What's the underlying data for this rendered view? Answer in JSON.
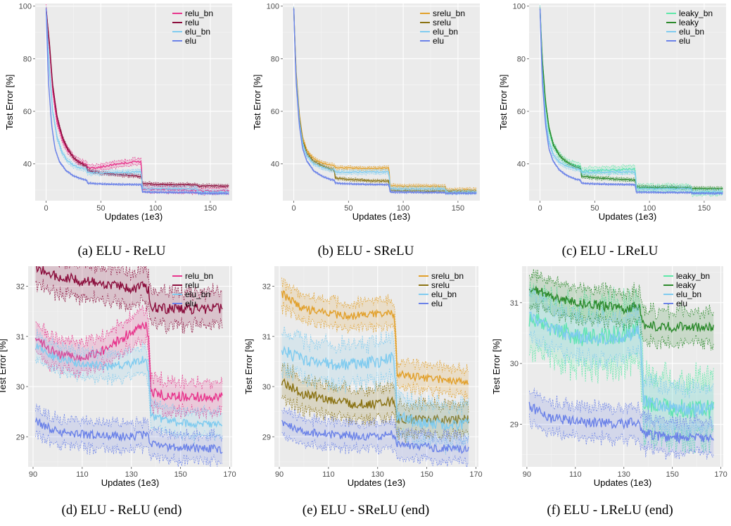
{
  "colors": {
    "panel_bg": "#ebebeb",
    "grid": "#ffffff",
    "relu_bn": "#e8348c",
    "relu": "#8b0d3c",
    "elu_bn": "#7fcbef",
    "elu": "#6b82e8",
    "srelu_bn": "#e2a02a",
    "srelu": "#8a7212",
    "leaky_bn": "#5de8a8",
    "leaky": "#2c8a2c"
  },
  "chart_data": [
    {
      "id": "a",
      "type": "line",
      "caption": "(a)  ELU - ReLU",
      "xlabel": "Updates (1e3)",
      "ylabel": "Test Error [%]",
      "xlim": [
        -10,
        170
      ],
      "ylim": [
        26,
        101
      ],
      "xticks": [
        0,
        50,
        100,
        150
      ],
      "yticks": [
        40,
        60,
        80,
        100
      ],
      "legend_position": "top-right",
      "series": [
        {
          "name": "relu_bn",
          "color_key": "relu_bn",
          "spread": 1.4,
          "x": [
            0,
            3,
            6,
            10,
            15,
            20,
            25,
            30,
            37,
            38,
            45,
            55,
            65,
            75,
            87,
            88,
            100,
            120,
            138,
            139,
            150,
            167
          ],
          "y": [
            99,
            85,
            68,
            56,
            49,
            45,
            42.5,
            41,
            39.5,
            38.5,
            38.5,
            39.2,
            40,
            40.5,
            41,
            30.5,
            30.3,
            30.1,
            30,
            29.8,
            29.8,
            29.8
          ]
        },
        {
          "name": "relu",
          "color_key": "relu",
          "spread": 0.7,
          "x": [
            0,
            3,
            6,
            10,
            15,
            20,
            25,
            30,
            37,
            38,
            50,
            70,
            87,
            88,
            100,
            120,
            138,
            139,
            150,
            167
          ],
          "y": [
            99,
            86,
            70,
            58,
            50,
            45.5,
            42.5,
            40.5,
            39,
            37.5,
            36.5,
            35.8,
            35.2,
            32.5,
            32.3,
            32.1,
            32,
            31.6,
            31.6,
            31.6
          ]
        },
        {
          "name": "elu_bn",
          "color_key": "elu_bn",
          "spread": 1.0,
          "x": [
            0,
            3,
            6,
            10,
            15,
            20,
            25,
            30,
            37,
            38,
            50,
            70,
            87,
            88,
            100,
            120,
            138,
            139,
            150,
            167
          ],
          "y": [
            99,
            76,
            60,
            50,
            44,
            41,
            39.5,
            38.5,
            38,
            36.6,
            36.6,
            36.8,
            37,
            30.6,
            30.5,
            30.5,
            30.5,
            29.3,
            29.3,
            29.3
          ]
        },
        {
          "name": "elu",
          "color_key": "elu",
          "spread": 0.4,
          "x": [
            0,
            2,
            5,
            8,
            12,
            18,
            25,
            32,
            37,
            38,
            50,
            70,
            87,
            88,
            100,
            120,
            138,
            139,
            150,
            167
          ],
          "y": [
            99,
            72,
            55,
            46,
            41,
            37.5,
            35.5,
            34.3,
            33.8,
            32.7,
            32.4,
            32.2,
            32.1,
            29.3,
            29.2,
            29.1,
            29.1,
            28.8,
            28.8,
            28.8
          ]
        }
      ]
    },
    {
      "id": "b",
      "type": "line",
      "caption": "(b)  ELU - SReLU",
      "xlabel": "Updates (1e3)",
      "ylabel": "Test Error [%]",
      "xlim": [
        -10,
        170
      ],
      "ylim": [
        26,
        101
      ],
      "xticks": [
        0,
        50,
        100,
        150
      ],
      "yticks": [
        40,
        60,
        80,
        100
      ],
      "legend_position": "top-right",
      "series": [
        {
          "name": "srelu_bn",
          "color_key": "srelu_bn",
          "spread": 0.8,
          "x": [
            0,
            2,
            5,
            8,
            12,
            18,
            25,
            32,
            37,
            38,
            50,
            70,
            87,
            88,
            100,
            120,
            138,
            139,
            150,
            167
          ],
          "y": [
            99,
            76,
            59,
            50,
            45,
            42,
            40.5,
            39.8,
            39.3,
            38.6,
            38.4,
            38.3,
            38.4,
            31.7,
            31.5,
            31.4,
            31.4,
            30.2,
            30.1,
            30.1
          ]
        },
        {
          "name": "srelu",
          "color_key": "srelu",
          "spread": 0.6,
          "x": [
            0,
            2,
            5,
            8,
            12,
            18,
            25,
            32,
            37,
            38,
            50,
            70,
            87,
            88,
            100,
            120,
            138,
            139,
            150,
            167
          ],
          "y": [
            99,
            75,
            58,
            49,
            44,
            41,
            39.5,
            38.3,
            37.8,
            34.6,
            34.1,
            33.6,
            33.4,
            29.9,
            29.8,
            29.7,
            29.7,
            29.4,
            29.4,
            29.4
          ]
        },
        {
          "name": "elu_bn",
          "color_key": "elu_bn",
          "spread": 0.9,
          "x": [
            0,
            2,
            5,
            8,
            12,
            18,
            25,
            32,
            37,
            38,
            50,
            70,
            87,
            88,
            100,
            120,
            138,
            139,
            150,
            167
          ],
          "y": [
            99,
            74,
            57,
            48,
            43,
            40.2,
            38.8,
            38,
            37.6,
            36.9,
            36.8,
            36.9,
            37,
            30.6,
            30.5,
            30.5,
            30.5,
            29.3,
            29.3,
            29.3
          ]
        },
        {
          "name": "elu",
          "color_key": "elu",
          "spread": 0.4,
          "x": [
            0,
            2,
            5,
            8,
            12,
            18,
            25,
            32,
            37,
            38,
            50,
            70,
            87,
            88,
            100,
            120,
            138,
            139,
            150,
            167
          ],
          "y": [
            99,
            72,
            55,
            46,
            41,
            37.5,
            35.5,
            34.3,
            33.8,
            32.7,
            32.4,
            32.2,
            32.1,
            29.3,
            29.2,
            29.1,
            29.1,
            28.8,
            28.8,
            28.8
          ]
        }
      ]
    },
    {
      "id": "c",
      "type": "line",
      "caption": "(c)  ELU - LReLU",
      "xlabel": "Updates (1e3)",
      "ylabel": "Test Error [%]",
      "xlim": [
        -10,
        170
      ],
      "ylim": [
        26,
        101
      ],
      "xticks": [
        0,
        50,
        100,
        150
      ],
      "yticks": [
        40,
        60,
        80,
        100
      ],
      "legend_position": "top-right",
      "series": [
        {
          "name": "leaky_bn",
          "color_key": "leaky_bn",
          "spread": 1.5,
          "x": [
            0,
            2,
            5,
            8,
            12,
            18,
            25,
            32,
            37,
            38,
            50,
            70,
            87,
            88,
            100,
            120,
            138,
            139,
            150,
            167
          ],
          "y": [
            99,
            80,
            63,
            53,
            47,
            43,
            40.5,
            39.5,
            38.8,
            37.3,
            37.4,
            37.8,
            38,
            31,
            30.9,
            30.8,
            30.8,
            29.3,
            29.3,
            29.3
          ]
        },
        {
          "name": "leaky",
          "color_key": "leaky",
          "spread": 0.7,
          "x": [
            0,
            2,
            5,
            8,
            12,
            18,
            25,
            32,
            37,
            38,
            50,
            70,
            87,
            88,
            100,
            120,
            138,
            139,
            150,
            167
          ],
          "y": [
            99,
            80,
            64,
            54,
            47.5,
            43,
            40.5,
            39,
            38.3,
            35.3,
            34.7,
            34.2,
            33.8,
            31.2,
            31.1,
            31,
            30.9,
            30.6,
            30.6,
            30.6
          ]
        },
        {
          "name": "elu_bn",
          "color_key": "elu_bn",
          "spread": 1.0,
          "x": [
            0,
            2,
            5,
            8,
            12,
            18,
            25,
            32,
            37,
            38,
            50,
            70,
            87,
            88,
            100,
            120,
            138,
            139,
            150,
            167
          ],
          "y": [
            99,
            75,
            58,
            49,
            43.5,
            40.5,
            39,
            38.2,
            37.8,
            36.8,
            36.8,
            36.9,
            37,
            30.6,
            30.5,
            30.5,
            30.5,
            29.3,
            29.3,
            29.3
          ]
        },
        {
          "name": "elu",
          "color_key": "elu",
          "spread": 0.4,
          "x": [
            0,
            2,
            5,
            8,
            12,
            18,
            25,
            32,
            37,
            38,
            50,
            70,
            87,
            88,
            100,
            120,
            138,
            139,
            150,
            167
          ],
          "y": [
            99,
            72,
            55,
            46,
            41,
            37.5,
            35.5,
            34.3,
            33.8,
            32.7,
            32.4,
            32.2,
            32.1,
            29.3,
            29.2,
            29.1,
            29.1,
            28.8,
            28.8,
            28.8
          ]
        }
      ]
    },
    {
      "id": "d",
      "type": "line",
      "caption": "(d)  ELU - ReLU (end)",
      "xlabel": "Updates (1e3)",
      "ylabel": "Test Error [%]",
      "xlim": [
        88,
        171
      ],
      "ylim": [
        28.4,
        32.4
      ],
      "xticks": [
        90,
        110,
        130,
        150,
        170
      ],
      "yticks": [
        29,
        30,
        31,
        32
      ],
      "legend_position": "top-right",
      "series": [
        {
          "name": "relu_bn",
          "color_key": "relu_bn",
          "spread": 0.35,
          "x": [
            91,
            100,
            110,
            120,
            130,
            136,
            137,
            138,
            145,
            155,
            167
          ],
          "y": [
            30.95,
            30.65,
            30.55,
            30.75,
            31.1,
            31.2,
            31,
            29.9,
            29.8,
            29.8,
            29.8
          ]
        },
        {
          "name": "relu",
          "color_key": "relu",
          "spread": 0.38,
          "x": [
            91,
            100,
            110,
            120,
            130,
            136,
            137,
            138,
            145,
            155,
            167
          ],
          "y": [
            32.35,
            32.2,
            32.1,
            32.05,
            31.95,
            32,
            31.9,
            31.6,
            31.55,
            31.55,
            31.55
          ]
        },
        {
          "name": "elu_bn",
          "color_key": "elu_bn",
          "spread": 0.3,
          "x": [
            91,
            100,
            110,
            120,
            130,
            136,
            137,
            138,
            145,
            155,
            167
          ],
          "y": [
            30.8,
            30.55,
            30.45,
            30.4,
            30.45,
            30.55,
            30.3,
            29.4,
            29.3,
            29.25,
            29.25
          ]
        },
        {
          "name": "elu",
          "color_key": "elu",
          "spread": 0.3,
          "x": [
            91,
            100,
            110,
            120,
            130,
            136,
            137,
            138,
            145,
            155,
            167
          ],
          "y": [
            29.3,
            29.1,
            29.05,
            29.02,
            29,
            29.05,
            28.95,
            28.85,
            28.8,
            28.78,
            28.75
          ]
        }
      ]
    },
    {
      "id": "e",
      "type": "line",
      "caption": "(e)  ELU - SReLU (end)",
      "xlabel": "Updates (1e3)",
      "ylabel": "Test Error [%]",
      "xlim": [
        88,
        171
      ],
      "ylim": [
        28.4,
        32.4
      ],
      "xticks": [
        90,
        110,
        130,
        150,
        170
      ],
      "yticks": [
        29,
        30,
        31,
        32
      ],
      "legend_position": "top-right",
      "series": [
        {
          "name": "srelu_bn",
          "color_key": "srelu_bn",
          "spread": 0.3,
          "x": [
            91,
            100,
            110,
            120,
            130,
            136,
            137,
            138,
            145,
            155,
            167
          ],
          "y": [
            31.85,
            31.55,
            31.45,
            31.4,
            31.45,
            31.5,
            31.3,
            30.25,
            30.2,
            30.15,
            30.1
          ]
        },
        {
          "name": "srelu",
          "color_key": "srelu",
          "spread": 0.35,
          "x": [
            91,
            100,
            110,
            120,
            130,
            136,
            137,
            138,
            145,
            155,
            167
          ],
          "y": [
            30.1,
            29.85,
            29.75,
            29.65,
            29.65,
            29.7,
            29.6,
            29.35,
            29.35,
            29.35,
            29.35
          ]
        },
        {
          "name": "elu_bn",
          "color_key": "elu_bn",
          "spread": 0.45,
          "x": [
            91,
            100,
            110,
            120,
            130,
            136,
            137,
            138,
            145,
            155,
            167
          ],
          "y": [
            30.75,
            30.5,
            30.45,
            30.45,
            30.5,
            30.6,
            30.3,
            29.4,
            29.3,
            29.25,
            29.25
          ]
        },
        {
          "name": "elu",
          "color_key": "elu",
          "spread": 0.3,
          "x": [
            91,
            100,
            110,
            120,
            130,
            136,
            137,
            138,
            145,
            155,
            167
          ],
          "y": [
            29.3,
            29.1,
            29.05,
            29.02,
            29,
            29.05,
            28.95,
            28.85,
            28.8,
            28.78,
            28.75
          ]
        }
      ]
    },
    {
      "id": "f",
      "type": "line",
      "caption": "(f)  ELU - LReLU (end)",
      "xlabel": "Updates (1e3)",
      "ylabel": "Test Error [%]",
      "xlim": [
        88,
        171
      ],
      "ylim": [
        28.3,
        31.6
      ],
      "xticks": [
        90,
        110,
        130,
        150,
        170
      ],
      "yticks": [
        29,
        30,
        31
      ],
      "legend_position": "top-right",
      "series": [
        {
          "name": "leaky_bn",
          "color_key": "leaky_bn",
          "spread": 0.6,
          "x": [
            91,
            100,
            110,
            120,
            130,
            136,
            137,
            138,
            145,
            155,
            167
          ],
          "y": [
            30.75,
            30.6,
            30.45,
            30.45,
            30.5,
            30.55,
            30.3,
            29.4,
            29.3,
            29.25,
            29.25
          ]
        },
        {
          "name": "leaky",
          "color_key": "leaky",
          "spread": 0.3,
          "x": [
            91,
            100,
            110,
            120,
            130,
            136,
            137,
            138,
            145,
            155,
            167
          ],
          "y": [
            31.25,
            31.1,
            31,
            30.95,
            30.9,
            30.95,
            30.85,
            30.65,
            30.6,
            30.6,
            30.6
          ]
        },
        {
          "name": "elu_bn",
          "color_key": "elu_bn",
          "spread": 0.4,
          "x": [
            91,
            100,
            110,
            120,
            130,
            136,
            137,
            138,
            145,
            155,
            167
          ],
          "y": [
            30.8,
            30.55,
            30.45,
            30.4,
            30.45,
            30.55,
            30.3,
            29.4,
            29.3,
            29.25,
            29.25
          ]
        },
        {
          "name": "elu",
          "color_key": "elu",
          "spread": 0.3,
          "x": [
            91,
            100,
            110,
            120,
            130,
            136,
            137,
            138,
            145,
            155,
            167
          ],
          "y": [
            29.3,
            29.1,
            29.05,
            29.02,
            29,
            29.05,
            28.95,
            28.85,
            28.8,
            28.78,
            28.75
          ]
        }
      ]
    }
  ]
}
